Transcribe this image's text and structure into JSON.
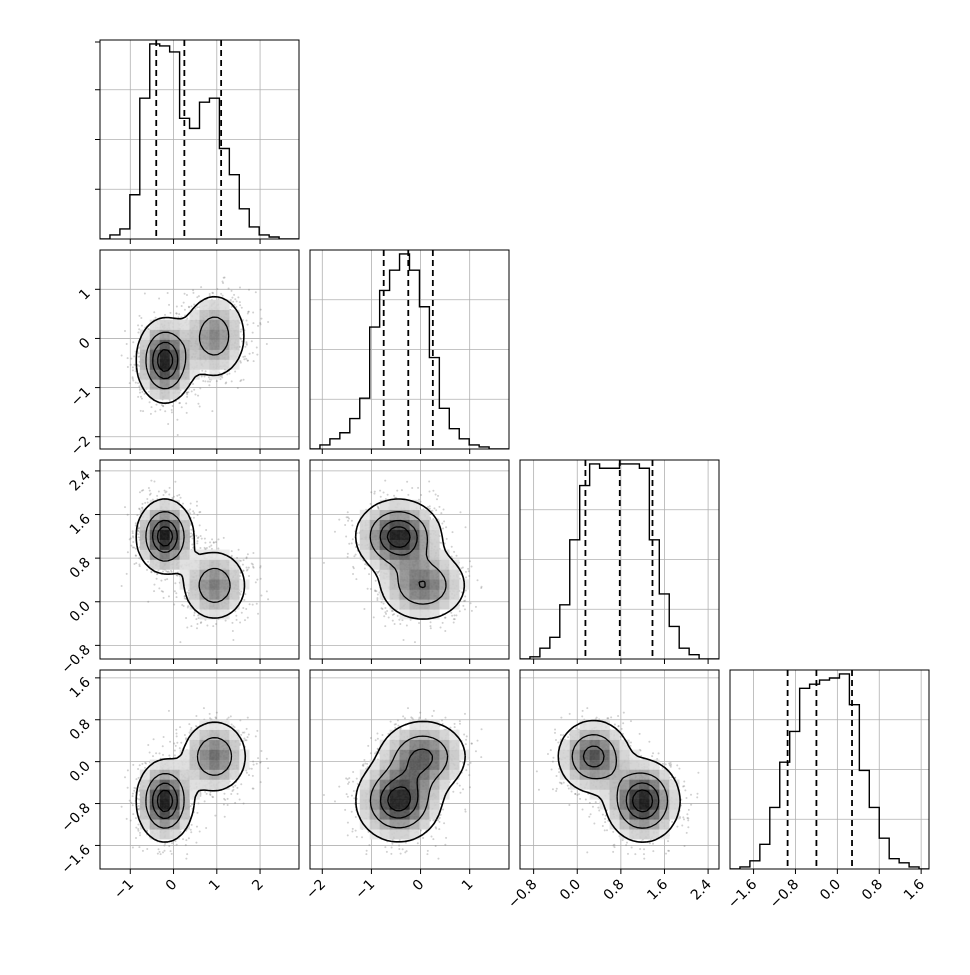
{
  "chart_data": {
    "type": "corner",
    "title": "",
    "dims": 4,
    "ranges": [
      [
        -1.7,
        2.9
      ],
      [
        -2.25,
        1.8
      ],
      [
        -1.05,
        2.6
      ],
      [
        -2.05,
        1.75
      ]
    ],
    "xticks": [
      [
        -1,
        0,
        1,
        2
      ],
      [
        -2,
        -1,
        0,
        1
      ],
      [
        -0.8,
        0.0,
        0.8,
        1.6,
        2.4
      ],
      [
        -1.6,
        -0.8,
        0.0,
        0.8,
        1.6
      ]
    ],
    "xticklabels": [
      [
        "−1",
        "0",
        "1",
        "2"
      ],
      [
        "−2",
        "−1",
        "0",
        "1"
      ],
      [
        "−0.8",
        "0.0",
        "0.8",
        "1.6",
        "2.4"
      ],
      [
        "−1.6",
        "−0.8",
        "0.0",
        "0.8",
        "1.6"
      ]
    ],
    "yticks": [
      null,
      [
        -2,
        -1,
        0,
        1
      ],
      [
        -0.8,
        0.0,
        0.8,
        1.6,
        2.4
      ],
      [
        -1.6,
        -0.8,
        0.0,
        0.8,
        1.6
      ]
    ],
    "yticklabels": [
      null,
      [
        "−2",
        "−1",
        "0",
        "1"
      ],
      [
        "−0.8",
        "0.0",
        "0.8",
        "1.6",
        "2.4"
      ],
      [
        "−1.6",
        "−0.8",
        "0.0",
        "0.8",
        "1.6"
      ]
    ],
    "quantiles": [
      [
        -0.4,
        0.25,
        1.1
      ],
      [
        -0.75,
        -0.25,
        0.25
      ],
      [
        0.15,
        0.78,
        1.38
      ],
      [
        -0.95,
        -0.4,
        0.28
      ]
    ],
    "histograms": [
      {
        "edges_min": -1.7,
        "edges_max": 2.9,
        "counts": [
          0,
          2,
          5,
          22,
          70,
          97,
          96,
          93,
          60,
          55,
          68,
          70,
          45,
          32,
          15,
          6,
          2,
          1,
          0,
          0
        ]
      },
      {
        "edges_min": -2.25,
        "edges_max": 1.8,
        "counts": [
          0,
          2,
          5,
          8,
          15,
          25,
          60,
          78,
          88,
          96,
          88,
          70,
          45,
          20,
          10,
          5,
          2,
          1,
          0,
          0
        ]
      },
      {
        "edges_min": -1.05,
        "edges_max": 2.6,
        "counts": [
          0,
          1,
          5,
          10,
          25,
          55,
          80,
          90,
          88,
          88,
          90,
          90,
          88,
          55,
          30,
          15,
          5,
          2,
          0,
          0
        ]
      },
      {
        "edges_min": -2.05,
        "edges_max": 1.75,
        "counts": [
          0,
          1,
          4,
          12,
          30,
          52,
          67,
          88,
          90,
          92,
          93,
          95,
          80,
          48,
          30,
          15,
          5,
          3,
          1,
          0
        ]
      }
    ],
    "components": [
      {
        "weight": 0.58,
        "mean": [
          -0.2,
          -0.45,
          1.2,
          -0.75
        ],
        "sd": [
          0.32,
          0.42,
          0.33,
          0.38
        ]
      },
      {
        "weight": 0.42,
        "mean": [
          0.95,
          0.05,
          0.3,
          0.1
        ],
        "sd": [
          0.38,
          0.45,
          0.33,
          0.35
        ]
      }
    ],
    "contour_levels": [
      0.118,
      0.393,
      0.675,
      0.865
    ],
    "grid": true,
    "colors": {
      "line": "#000000",
      "grid": "#b0b0b0",
      "points": "#777777"
    }
  }
}
